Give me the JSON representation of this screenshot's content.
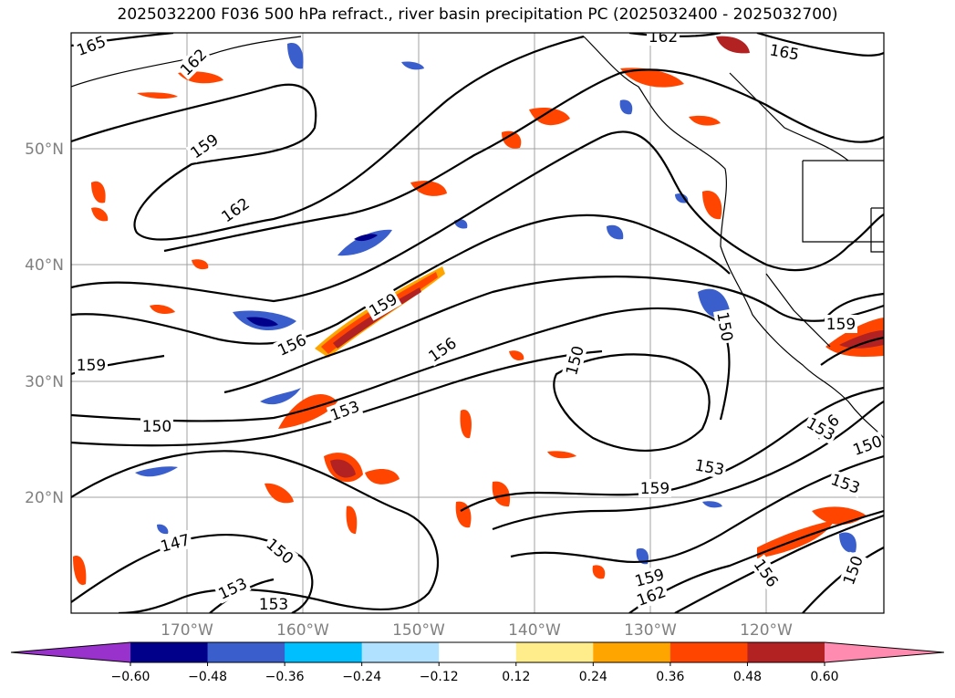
{
  "title": "2025032200 F036 500 hPa refract., river basin precipitation PC (2025032400 - 2025032700)",
  "lat_labels": [
    "50°N",
    "40°N",
    "30°N",
    "20°N"
  ],
  "lon_labels": [
    "170°W",
    "160°W",
    "150°W",
    "140°W",
    "130°W",
    "120°W"
  ],
  "colorbar": {
    "tick_labels": [
      "−0.60",
      "−0.48",
      "−0.36",
      "−0.24",
      "−0.12",
      "0.12",
      "0.24",
      "0.36",
      "0.48",
      "0.60"
    ],
    "colors": [
      "#9932cc",
      "#00008b",
      "#3a5fcd",
      "#00bfff",
      "#b0e2ff",
      "#ffffff",
      "#ffec8b",
      "#ffa500",
      "#ff4500",
      "#b22222",
      "#ff8cb0"
    ]
  },
  "contour_labels": [
    {
      "text": "165",
      "rot": -20
    },
    {
      "text": "162",
      "rot": -45
    },
    {
      "text": "159",
      "rot": -35
    },
    {
      "text": "162",
      "rot": -35
    },
    {
      "text": "165",
      "rot": 10
    },
    {
      "text": "162",
      "rot": 0
    },
    {
      "text": "159",
      "rot": -30
    },
    {
      "text": "156",
      "rot": -25
    },
    {
      "text": "156",
      "rot": -35
    },
    {
      "text": "159",
      "rot": 0
    },
    {
      "text": "150",
      "rot": -75
    },
    {
      "text": "150",
      "rot": 80
    },
    {
      "text": "159",
      "rot": 0
    },
    {
      "text": "153",
      "rot": -20
    },
    {
      "text": "150",
      "rot": 0
    },
    {
      "text": "153",
      "rot": 10
    },
    {
      "text": "159",
      "rot": 0
    },
    {
      "text": "153",
      "rot": 20
    },
    {
      "text": "156",
      "rot": -40
    },
    {
      "text": "150",
      "rot": -20
    },
    {
      "text": "147",
      "rot": -15
    },
    {
      "text": "150",
      "rot": 40
    },
    {
      "text": "153",
      "rot": -25
    },
    {
      "text": "153",
      "rot": 0
    },
    {
      "text": "159",
      "rot": -15
    },
    {
      "text": "162",
      "rot": -20
    },
    {
      "text": "156",
      "rot": 55
    },
    {
      "text": "150",
      "rot": -70
    },
    {
      "text": "153",
      "rot": 30
    }
  ]
}
